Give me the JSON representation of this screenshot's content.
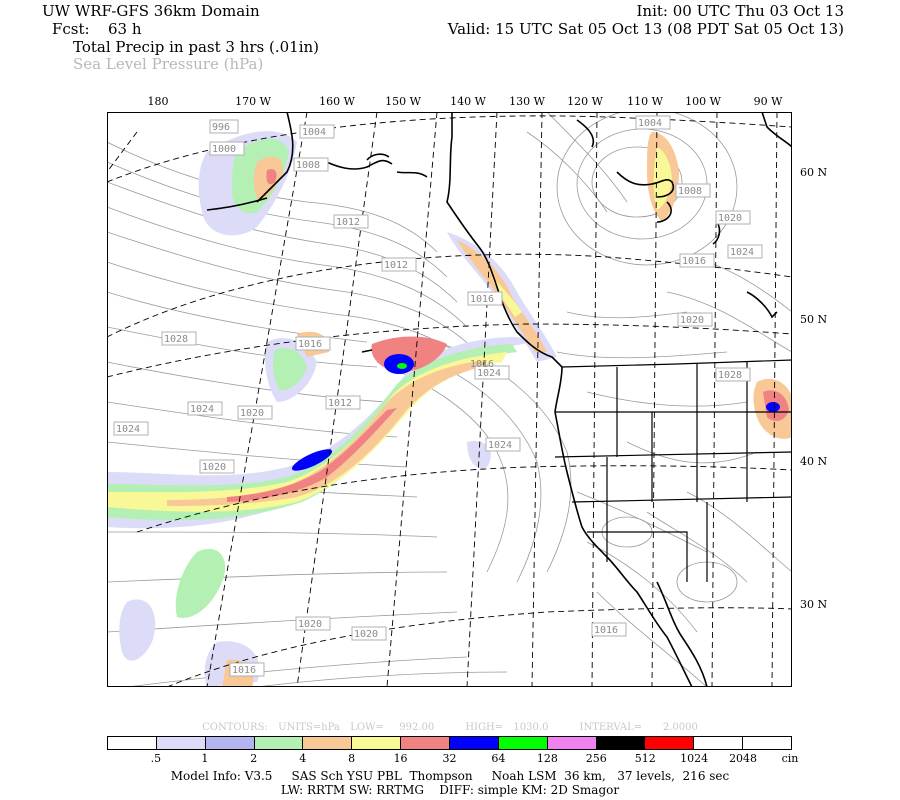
{
  "header": {
    "model": "UW WRF-GFS 36km Domain",
    "init": "Init: 00 UTC Thu 03 Oct 13",
    "fcst_label": "Fcst:",
    "fcst_value": "63 h",
    "valid": "Valid: 15 UTC Sat 05 Oct 13 (08 PDT Sat 05 Oct 13)",
    "field1": "Total Precip in past 3 hrs (.01in)",
    "field2": "Sea Level Pressure (hPa)"
  },
  "longitude_labels": [
    "180",
    "170 W",
    "160 W",
    "150 W",
    "140 W",
    "130 W",
    "120 W",
    "110 W",
    "100 W",
    "90 W"
  ],
  "latitude_labels": [
    "60 N",
    "50 N",
    "40 N",
    "30 N"
  ],
  "pressure_labels": [
    "996",
    "1000",
    "1004",
    "1008",
    "1004",
    "1008",
    "1012",
    "1012",
    "1016",
    "1020",
    "1024",
    "1028",
    "1016",
    "1012",
    "1020",
    "1016",
    "1024",
    "1020",
    "1024",
    "1028",
    "1020",
    "1024",
    "1020",
    "1016",
    "1016",
    "1020",
    "1016",
    "1024"
  ],
  "contour_info": "CONTOURS:  UNITS=hPa  LOW=   992.00      HIGH=  1030.0      INTERVAL=    2.0000",
  "legend": {
    "colors": [
      "#ffffff",
      "#dcdcf8",
      "#b4b4f0",
      "#b4f0b4",
      "#f8c896",
      "#f8f896",
      "#f08282",
      "#0000ff",
      "#00ff00",
      "#f082f0",
      "#000000",
      "#ff0000",
      "#ffffff",
      "#ffffff"
    ],
    "labels": [
      ".5",
      "1",
      "2",
      "4",
      "8",
      "16",
      "32",
      "64",
      "128",
      "256",
      "512",
      "1024",
      "2048",
      "cin"
    ]
  },
  "footer": {
    "line1": "Model Info: V3.5     SAS Sch YSU PBL  Thompson     Noah LSM  36 km,   37 levels,  216 sec",
    "line2": "LW: RRTM SW: RRTMG    DIFF: simple KM: 2D Smagor"
  }
}
